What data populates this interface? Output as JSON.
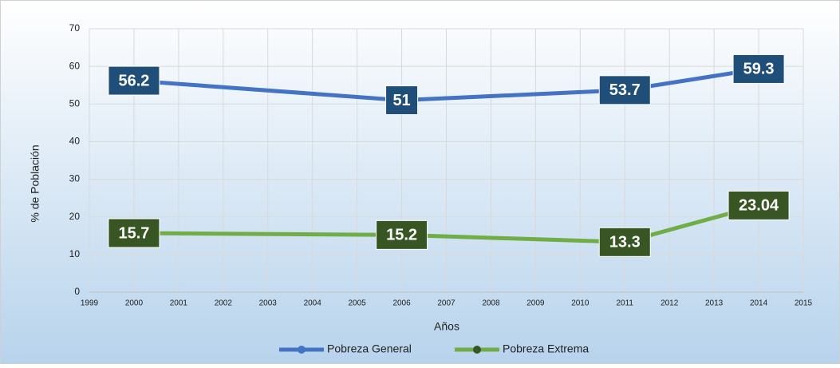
{
  "chart_data": {
    "type": "line",
    "x": [
      2000,
      2006,
      2011,
      2014
    ],
    "series": [
      {
        "name": "Pobreza General",
        "color": "#4472c4",
        "label_color": "#1f4e79",
        "values": [
          56.2,
          51,
          53.7,
          59.3
        ]
      },
      {
        "name": "Pobreza Extrema",
        "color": "#70ad47",
        "label_color": "#375623",
        "values": [
          15.7,
          15.2,
          13.3,
          23.04
        ]
      }
    ],
    "xlabel": "Años",
    "ylabel": "% de Población",
    "xlim": [
      1999,
      2015
    ],
    "xticks": [
      1999,
      2000,
      2001,
      2002,
      2003,
      2004,
      2005,
      2006,
      2007,
      2008,
      2009,
      2010,
      2011,
      2012,
      2013,
      2014,
      2015
    ],
    "ylim": [
      0,
      70
    ],
    "yticks": [
      0,
      10,
      20,
      30,
      40,
      50,
      60,
      70
    ],
    "grid": true,
    "legend": "bottom"
  }
}
